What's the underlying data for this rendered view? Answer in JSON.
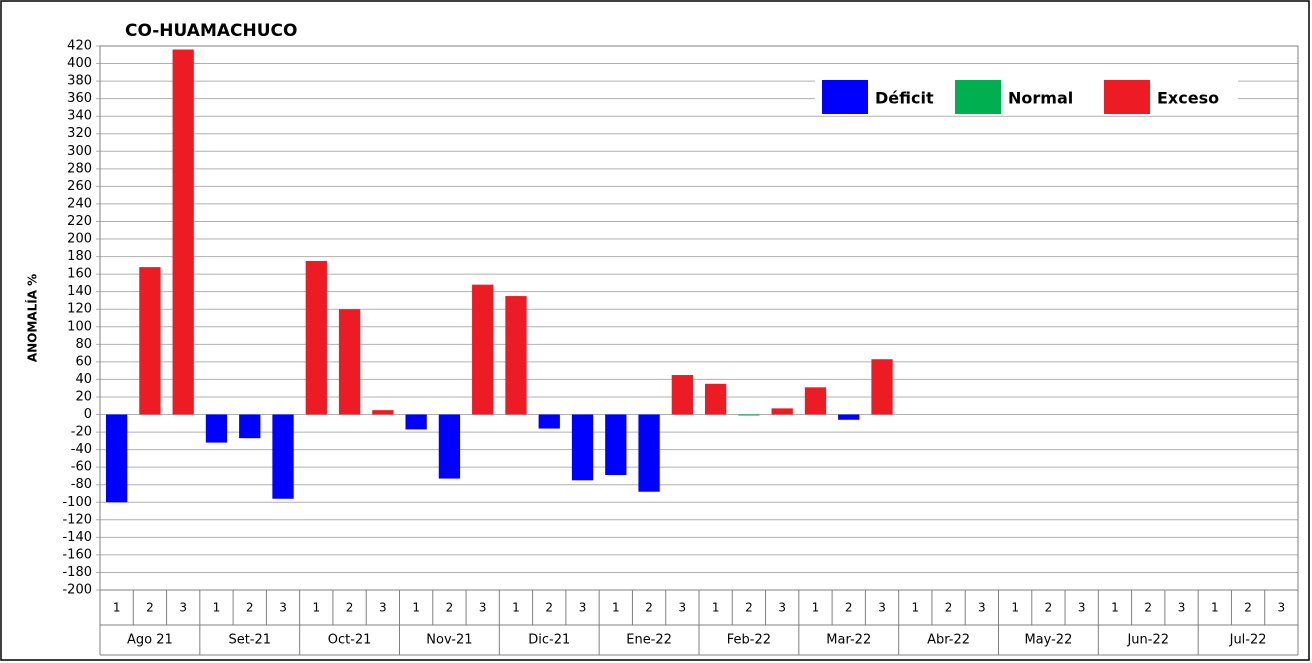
{
  "chart_data": {
    "type": "bar",
    "title": "CO-HUAMACHUCO",
    "y_label": "ANOMALÍA %",
    "categories": [
      "1",
      "2",
      "3",
      "1",
      "2",
      "3",
      "1",
      "2",
      "3",
      "1",
      "2",
      "3",
      "1",
      "2",
      "3",
      "1",
      "2",
      "3",
      "1",
      "2",
      "3",
      "1",
      "2",
      "3",
      "1",
      "2",
      "3",
      "1",
      "2",
      "3",
      "1",
      "2",
      "3",
      "1",
      "2",
      "3"
    ],
    "groups": [
      "Ago 21",
      "Set-21",
      "Oct-21",
      "Nov-21",
      "Dic-21",
      "Ene-22",
      "Feb-22",
      "Mar-22",
      "Abr-22",
      "May-22",
      "Jun-22",
      "Jul-22"
    ],
    "series": [
      {
        "name": "Déficit",
        "color": "#0000ff",
        "values": [
          -100,
          null,
          null,
          -32,
          -27,
          -96,
          null,
          null,
          null,
          -17,
          -73,
          null,
          null,
          -16,
          -75,
          -69,
          -88,
          null,
          null,
          null,
          null,
          null,
          -6,
          null,
          null,
          null,
          null,
          null,
          null,
          null,
          null,
          null,
          null,
          null,
          null,
          null
        ]
      },
      {
        "name": "Normal",
        "color": "#00b050",
        "values": [
          null,
          null,
          null,
          null,
          null,
          null,
          null,
          null,
          null,
          null,
          null,
          null,
          null,
          null,
          null,
          null,
          null,
          null,
          null,
          -1,
          null,
          null,
          null,
          null,
          null,
          null,
          null,
          null,
          null,
          null,
          null,
          null,
          null,
          null,
          null,
          null
        ]
      },
      {
        "name": "Exceso",
        "color": "#ed1c24",
        "values": [
          null,
          168,
          416,
          null,
          null,
          null,
          175,
          120,
          5,
          null,
          null,
          148,
          135,
          null,
          null,
          null,
          null,
          45,
          35,
          null,
          7,
          31,
          null,
          63,
          null,
          null,
          null,
          null,
          null,
          null,
          null,
          null,
          null,
          null,
          null,
          null
        ]
      }
    ],
    "ylim": [
      -200,
      420
    ],
    "yticks": [
      -200,
      -180,
      -160,
      -140,
      -120,
      -100,
      -80,
      -60,
      -40,
      -20,
      0,
      20,
      40,
      60,
      80,
      100,
      120,
      140,
      160,
      180,
      200,
      220,
      240,
      260,
      280,
      300,
      320,
      340,
      360,
      380,
      400,
      420
    ],
    "grid": true
  }
}
